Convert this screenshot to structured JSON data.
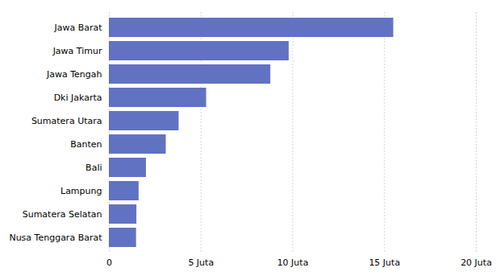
{
  "chart_data": {
    "type": "bar",
    "orientation": "horizontal",
    "categories": [
      "Nusa Tenggara Barat",
      "Sumatera Selatan",
      "Lampung",
      "Bali",
      "Banten",
      "Sumatera Utara",
      "Dki Jakarta",
      "Jawa Tengah",
      "Jawa Timur",
      "Jawa Barat"
    ],
    "values": [
      1.48,
      1.5,
      1.62,
      2.02,
      3.1,
      3.8,
      5.3,
      8.8,
      9.8,
      15.5
    ],
    "color": "#6272c3",
    "xlim": [
      0,
      20
    ],
    "xticks": [
      0,
      {
        "value": 5,
        "label": "5 Juta"
      },
      {
        "value": 10,
        "label": "10 Juta"
      },
      {
        "value": 15,
        "label": "15 Juta"
      },
      {
        "value": 20,
        "label": "20 Juta"
      }
    ],
    "grid": true
  }
}
